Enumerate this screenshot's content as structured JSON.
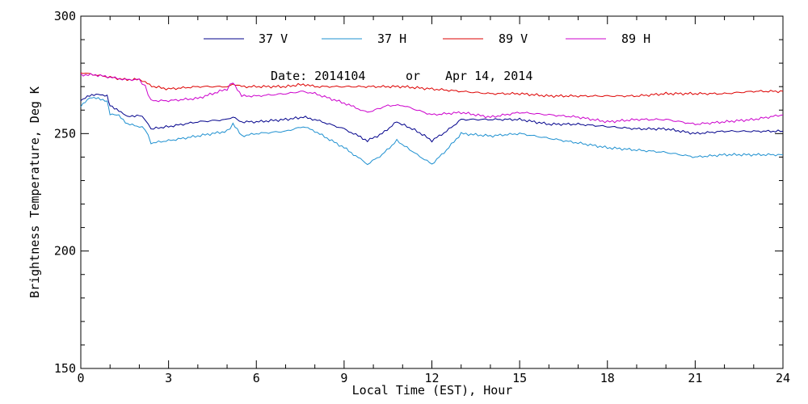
{
  "chart_data": {
    "type": "line",
    "xlabel": "Local Time (EST), Hour",
    "ylabel": "Brightness Temperature, Deg K",
    "xlim": [
      0,
      24
    ],
    "ylim": [
      150,
      300
    ],
    "xticks": [
      0,
      3,
      6,
      9,
      12,
      15,
      18,
      21,
      24
    ],
    "yticks": [
      150,
      200,
      250,
      300
    ],
    "xtick_labels": [
      "0",
      "3",
      "6",
      "9",
      "12",
      "15",
      "18",
      "21",
      "24"
    ],
    "ytick_labels": [
      "150",
      "200",
      "250",
      "300"
    ],
    "grid": false,
    "legend_placement": "top",
    "annotation": {
      "date_label": "Date: 2014104",
      "or_label": "or",
      "date_text": "Apr 14, 2014"
    },
    "series": [
      {
        "name": "37 V",
        "color": "#00008b",
        "x": [
          0,
          0.3,
          0.6,
          0.9,
          1.0,
          1.3,
          1.6,
          2.0,
          2.2,
          2.4,
          3.0,
          4.0,
          5.0,
          5.2,
          5.5,
          6.0,
          7.0,
          7.6,
          8.0,
          9.0,
          9.8,
          10.3,
          10.8,
          11.5,
          12.0,
          12.5,
          13.0,
          14.0,
          15.0,
          16.0,
          17.0,
          18.0,
          19.0,
          20.0,
          21.0,
          22.0,
          23.0,
          24.0
        ],
        "y": [
          264,
          266,
          267,
          266,
          262,
          260,
          257,
          258,
          256,
          252,
          253,
          255,
          256,
          257,
          255,
          255,
          256,
          257,
          256,
          252,
          247,
          250,
          255,
          251,
          247,
          251,
          256,
          256,
          256,
          254,
          254,
          253,
          252,
          252,
          250,
          251,
          251,
          251
        ]
      },
      {
        "name": "37 H",
        "color": "#1e90d0",
        "x": [
          0,
          0.3,
          0.6,
          0.9,
          1.0,
          1.3,
          1.6,
          2.0,
          2.2,
          2.4,
          3.0,
          4.0,
          5.0,
          5.2,
          5.5,
          6.0,
          7.0,
          7.6,
          8.0,
          9.0,
          9.8,
          10.3,
          10.8,
          11.5,
          12.0,
          12.5,
          13.0,
          14.0,
          15.0,
          16.0,
          17.0,
          18.0,
          19.0,
          20.0,
          21.0,
          22.0,
          23.0,
          24.0
        ],
        "y": [
          262,
          265,
          265,
          264,
          258,
          258,
          254,
          253,
          252,
          246,
          247,
          249,
          251,
          254,
          249,
          250,
          251,
          253,
          251,
          244,
          237,
          241,
          247,
          241,
          237,
          243,
          250,
          249,
          250,
          248,
          246,
          244,
          243,
          242,
          240,
          241,
          241,
          241
        ]
      },
      {
        "name": "89 V",
        "color": "#dd0000",
        "x": [
          0,
          0.5,
          1.0,
          1.5,
          2.0,
          2.2,
          2.5,
          3.0,
          4.0,
          5.0,
          5.2,
          5.5,
          6.0,
          7.0,
          7.6,
          8.0,
          9.0,
          10.0,
          11.0,
          12.0,
          13.0,
          14.0,
          15.0,
          16.0,
          17.0,
          18.0,
          19.0,
          20.0,
          21.0,
          22.0,
          23.0,
          24.0
        ],
        "y": [
          276,
          275,
          274,
          273,
          273,
          272,
          270,
          269,
          270,
          270,
          271,
          270,
          270,
          270,
          271,
          270,
          270,
          270,
          270,
          269,
          268,
          267,
          267,
          266,
          266,
          266,
          266,
          267,
          267,
          267,
          268,
          268
        ]
      },
      {
        "name": "89 H",
        "color": "#cc00cc",
        "x": [
          0,
          0.5,
          1.0,
          1.5,
          2.0,
          2.2,
          2.4,
          3.0,
          4.0,
          5.0,
          5.2,
          5.5,
          6.0,
          7.0,
          7.6,
          8.0,
          9.0,
          9.8,
          10.5,
          11.0,
          12.0,
          13.0,
          14.0,
          15.0,
          16.0,
          17.0,
          18.0,
          19.0,
          20.0,
          21.0,
          22.0,
          23.0,
          24.0
        ],
        "y": [
          275,
          275,
          274,
          273,
          273,
          270,
          264,
          264,
          265,
          269,
          272,
          266,
          266,
          267,
          268,
          267,
          263,
          259,
          262,
          262,
          258,
          259,
          257,
          259,
          258,
          257,
          255,
          256,
          256,
          254,
          255,
          256,
          258
        ]
      }
    ]
  }
}
